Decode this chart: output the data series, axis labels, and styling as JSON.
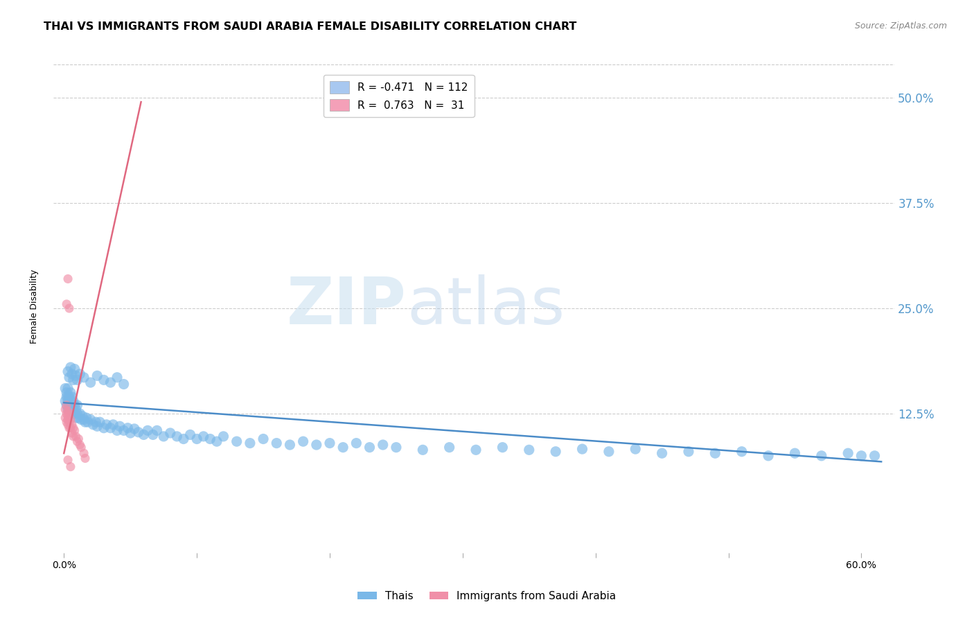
{
  "title": "THAI VS IMMIGRANTS FROM SAUDI ARABIA FEMALE DISABILITY CORRELATION CHART",
  "source": "Source: ZipAtlas.com",
  "ylabel": "Female Disability",
  "watermark_zip": "ZIP",
  "watermark_atlas": "atlas",
  "legend_entry1": {
    "color": "#a8c8f0",
    "label": "Thais",
    "R": "-0.471",
    "N": "112"
  },
  "legend_entry2": {
    "color": "#f4a0b8",
    "label": "Immigrants from Saudi Arabia",
    "R": " 0.763",
    "N": " 31"
  },
  "blue_color": "#7ab8e8",
  "pink_color": "#f090a8",
  "blue_line_color": "#4b8cc8",
  "pink_line_color": "#e06880",
  "right_axis_color": "#5599cc",
  "ytick_labels": [
    "50.0%",
    "37.5%",
    "25.0%",
    "12.5%"
  ],
  "ytick_values": [
    0.5,
    0.375,
    0.25,
    0.125
  ],
  "ylim": [
    -0.04,
    0.545
  ],
  "xlim": [
    -0.008,
    0.625
  ],
  "xtick_values": [
    0.0,
    0.1,
    0.2,
    0.3,
    0.4,
    0.5,
    0.6
  ],
  "xtick_labels": [
    "0.0%",
    "",
    "",
    "",
    "",
    "",
    "60.0%"
  ],
  "blue_scatter_x": [
    0.001,
    0.001,
    0.002,
    0.002,
    0.002,
    0.003,
    0.003,
    0.003,
    0.003,
    0.004,
    0.004,
    0.004,
    0.005,
    0.005,
    0.005,
    0.006,
    0.006,
    0.006,
    0.007,
    0.007,
    0.008,
    0.008,
    0.009,
    0.009,
    0.01,
    0.01,
    0.011,
    0.012,
    0.013,
    0.014,
    0.015,
    0.016,
    0.017,
    0.018,
    0.02,
    0.022,
    0.024,
    0.025,
    0.027,
    0.03,
    0.032,
    0.035,
    0.037,
    0.04,
    0.042,
    0.045,
    0.048,
    0.05,
    0.053,
    0.056,
    0.06,
    0.063,
    0.067,
    0.07,
    0.075,
    0.08,
    0.085,
    0.09,
    0.095,
    0.1,
    0.105,
    0.11,
    0.115,
    0.12,
    0.13,
    0.14,
    0.15,
    0.16,
    0.17,
    0.18,
    0.19,
    0.2,
    0.21,
    0.22,
    0.23,
    0.24,
    0.25,
    0.27,
    0.29,
    0.31,
    0.33,
    0.35,
    0.37,
    0.39,
    0.41,
    0.43,
    0.45,
    0.47,
    0.49,
    0.51,
    0.53,
    0.55,
    0.57,
    0.59,
    0.6,
    0.61,
    0.003,
    0.004,
    0.005,
    0.006,
    0.007,
    0.008,
    0.009,
    0.01,
    0.012,
    0.015,
    0.02,
    0.025,
    0.03,
    0.035,
    0.04,
    0.045
  ],
  "blue_scatter_y": [
    0.14,
    0.155,
    0.145,
    0.135,
    0.15,
    0.14,
    0.13,
    0.145,
    0.155,
    0.135,
    0.13,
    0.145,
    0.14,
    0.13,
    0.15,
    0.135,
    0.125,
    0.145,
    0.13,
    0.14,
    0.125,
    0.135,
    0.13,
    0.12,
    0.125,
    0.135,
    0.12,
    0.125,
    0.118,
    0.122,
    0.118,
    0.115,
    0.12,
    0.115,
    0.118,
    0.112,
    0.115,
    0.11,
    0.115,
    0.108,
    0.112,
    0.108,
    0.112,
    0.105,
    0.11,
    0.105,
    0.108,
    0.102,
    0.107,
    0.103,
    0.1,
    0.105,
    0.1,
    0.105,
    0.098,
    0.102,
    0.098,
    0.095,
    0.1,
    0.095,
    0.098,
    0.095,
    0.092,
    0.098,
    0.092,
    0.09,
    0.095,
    0.09,
    0.088,
    0.092,
    0.088,
    0.09,
    0.085,
    0.09,
    0.085,
    0.088,
    0.085,
    0.082,
    0.085,
    0.082,
    0.085,
    0.082,
    0.08,
    0.083,
    0.08,
    0.083,
    0.078,
    0.08,
    0.078,
    0.08,
    0.075,
    0.078,
    0.075,
    0.078,
    0.075,
    0.075,
    0.175,
    0.168,
    0.18,
    0.172,
    0.165,
    0.178,
    0.17,
    0.165,
    0.172,
    0.168,
    0.162,
    0.17,
    0.165,
    0.162,
    0.168,
    0.16
  ],
  "pink_scatter_x": [
    0.001,
    0.001,
    0.002,
    0.002,
    0.002,
    0.003,
    0.003,
    0.003,
    0.003,
    0.004,
    0.004,
    0.004,
    0.005,
    0.005,
    0.006,
    0.006,
    0.007,
    0.007,
    0.008,
    0.009,
    0.01,
    0.011,
    0.012,
    0.013,
    0.015,
    0.016,
    0.002,
    0.003,
    0.004,
    0.003,
    0.005
  ],
  "pink_scatter_y": [
    0.13,
    0.12,
    0.135,
    0.125,
    0.115,
    0.128,
    0.118,
    0.122,
    0.112,
    0.125,
    0.115,
    0.108,
    0.118,
    0.108,
    0.112,
    0.102,
    0.108,
    0.098,
    0.105,
    0.098,
    0.092,
    0.095,
    0.088,
    0.085,
    0.078,
    0.072,
    0.255,
    0.285,
    0.25,
    0.07,
    0.062
  ],
  "pink_trendline_x": [
    0.0,
    0.058
  ],
  "pink_trendline_y": [
    0.078,
    0.495
  ],
  "blue_trendline_x": [
    0.0,
    0.615
  ],
  "blue_trendline_y": [
    0.138,
    0.068
  ],
  "title_fontsize": 11.5,
  "axis_label_fontsize": 9,
  "tick_fontsize": 10,
  "legend_fontsize": 11,
  "scatter_size_blue": 120,
  "scatter_size_pink": 90
}
